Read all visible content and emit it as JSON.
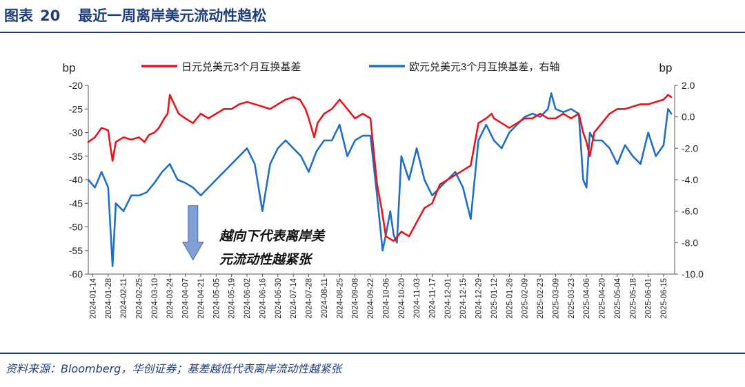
{
  "figure": {
    "label": "图表",
    "number": "20",
    "title": "最近一周离岸美元流动性趋松"
  },
  "source": "资料来源：Bloomberg，华创证券；基差越低代表离岸流动性越紧张",
  "colors": {
    "jpy_series": "#e8141c",
    "eur_series": "#1f6fc6",
    "header": "#1f3f7a",
    "annotation_arrow": "#7f9fd5"
  },
  "chart_data": {
    "type": "line",
    "y_left": {
      "unit": "bp",
      "min": -60,
      "max": -20,
      "ticks": [
        -20,
        -25,
        -30,
        -35,
        -40,
        -45,
        -50,
        -55,
        -60
      ]
    },
    "y_right": {
      "unit": "bp",
      "min": -10.0,
      "max": 2.0,
      "ticks": [
        "2.0",
        "0.0",
        "-2.0",
        "-4.0",
        "-6.0",
        "-8.0",
        "-10.0"
      ]
    },
    "x_range": [
      "2024-01-10",
      "2025-06-25"
    ],
    "x_tick_labels": [
      "2024-01-14",
      "2024-01-28",
      "2024-02-11",
      "2024-02-25",
      "2024-03-10",
      "2024-03-24",
      "2024-04-07",
      "2024-04-21",
      "2024-05-05",
      "2024-05-19",
      "2024-06-02",
      "2024-06-16",
      "2024-06-30",
      "2024-07-14",
      "2024-07-28",
      "2024-08-11",
      "2024-08-25",
      "2024-09-08",
      "2024-09-22",
      "2024-10-06",
      "2024-10-20",
      "2024-11-03",
      "2024-11-17",
      "2024-12-01",
      "2024-12-15",
      "2024-12-29",
      "2025-01-12",
      "2025-01-26",
      "2025-02-09",
      "2025-02-23",
      "2025-03-09",
      "2025-03-23",
      "2025-04-06",
      "2025-04-20",
      "2025-05-04",
      "2025-05-18",
      "2025-06-01",
      "2025-06-15"
    ],
    "grid": false,
    "legend_position": "top",
    "annotation": {
      "lines": [
        "越向下代表离岸美",
        "元流动性越紧张"
      ],
      "arrow": "down",
      "arrow_date": "2024-04-14",
      "arrow_from": -45.5,
      "arrow_to": -57
    },
    "series": [
      {
        "name": "日元兑美元3个月互换基差",
        "axis": "left",
        "points": [
          [
            "2024-01-10",
            -32
          ],
          [
            "2024-01-16",
            -31
          ],
          [
            "2024-01-22",
            -29
          ],
          [
            "2024-01-28",
            -29.5
          ],
          [
            "2024-01-30",
            -33
          ],
          [
            "2024-02-01",
            -36
          ],
          [
            "2024-02-04",
            -32
          ],
          [
            "2024-02-11",
            -31
          ],
          [
            "2024-02-18",
            -31.5
          ],
          [
            "2024-02-25",
            -31
          ],
          [
            "2024-03-01",
            -32
          ],
          [
            "2024-03-05",
            -30.5
          ],
          [
            "2024-03-10",
            -30
          ],
          [
            "2024-03-14",
            -29
          ],
          [
            "2024-03-19",
            -27
          ],
          [
            "2024-03-22",
            -26
          ],
          [
            "2024-03-24",
            -22
          ],
          [
            "2024-03-28",
            -24
          ],
          [
            "2024-04-01",
            -26
          ],
          [
            "2024-04-07",
            -27
          ],
          [
            "2024-04-14",
            -28
          ],
          [
            "2024-04-21",
            -26
          ],
          [
            "2024-04-28",
            -27
          ],
          [
            "2024-05-05",
            -26
          ],
          [
            "2024-05-12",
            -25
          ],
          [
            "2024-05-19",
            -25
          ],
          [
            "2024-05-26",
            -24
          ],
          [
            "2024-06-02",
            -23.5
          ],
          [
            "2024-06-09",
            -24
          ],
          [
            "2024-06-16",
            -24.5
          ],
          [
            "2024-06-23",
            -25
          ],
          [
            "2024-06-30",
            -24
          ],
          [
            "2024-07-07",
            -23
          ],
          [
            "2024-07-14",
            -22.5
          ],
          [
            "2024-07-20",
            -23
          ],
          [
            "2024-07-25",
            -25
          ],
          [
            "2024-07-28",
            -27
          ],
          [
            "2024-08-02",
            -31
          ],
          [
            "2024-08-05",
            -28
          ],
          [
            "2024-08-11",
            -26
          ],
          [
            "2024-08-18",
            -25
          ],
          [
            "2024-08-25",
            -23
          ],
          [
            "2024-09-01",
            -25
          ],
          [
            "2024-09-08",
            -27
          ],
          [
            "2024-09-15",
            -26
          ],
          [
            "2024-09-22",
            -27
          ],
          [
            "2024-09-28",
            -41
          ],
          [
            "2024-10-02",
            -46
          ],
          [
            "2024-10-06",
            -52
          ],
          [
            "2024-10-13",
            -53
          ],
          [
            "2024-10-20",
            -51
          ],
          [
            "2024-10-27",
            -52
          ],
          [
            "2024-11-03",
            -49
          ],
          [
            "2024-11-10",
            -46
          ],
          [
            "2024-11-17",
            -45
          ],
          [
            "2024-11-24",
            -41
          ],
          [
            "2024-12-01",
            -40
          ],
          [
            "2024-12-08",
            -39
          ],
          [
            "2024-12-15",
            -38
          ],
          [
            "2024-12-22",
            -37
          ],
          [
            "2024-12-29",
            -28
          ],
          [
            "2025-01-05",
            -27
          ],
          [
            "2025-01-10",
            -26
          ],
          [
            "2025-01-12",
            -27
          ],
          [
            "2025-01-19",
            -28
          ],
          [
            "2025-01-26",
            -29
          ],
          [
            "2025-02-02",
            -28
          ],
          [
            "2025-02-09",
            -27
          ],
          [
            "2025-02-16",
            -27
          ],
          [
            "2025-02-23",
            -26
          ],
          [
            "2025-03-02",
            -27
          ],
          [
            "2025-03-09",
            -27
          ],
          [
            "2025-03-16",
            -26
          ],
          [
            "2025-03-23",
            -27
          ],
          [
            "2025-03-30",
            -26
          ],
          [
            "2025-04-03",
            -30
          ],
          [
            "2025-04-06",
            -32
          ],
          [
            "2025-04-09",
            -35
          ],
          [
            "2025-04-13",
            -30
          ],
          [
            "2025-04-20",
            -28
          ],
          [
            "2025-04-27",
            -26
          ],
          [
            "2025-05-04",
            -25
          ],
          [
            "2025-05-11",
            -25
          ],
          [
            "2025-05-18",
            -24.5
          ],
          [
            "2025-05-25",
            -24
          ],
          [
            "2025-06-01",
            -24
          ],
          [
            "2025-06-08",
            -23.5
          ],
          [
            "2025-06-15",
            -23
          ],
          [
            "2025-06-19",
            -22
          ],
          [
            "2025-06-22",
            -22.5
          ]
        ]
      },
      {
        "name": "欧元兑美元3个月互换基差，右轴",
        "axis": "right",
        "points": [
          [
            "2024-01-10",
            -4
          ],
          [
            "2024-01-16",
            -4.5
          ],
          [
            "2024-01-22",
            -3.5
          ],
          [
            "2024-01-28",
            -4.5
          ],
          [
            "2024-02-01",
            -9.5
          ],
          [
            "2024-02-04",
            -5.5
          ],
          [
            "2024-02-11",
            -6
          ],
          [
            "2024-02-18",
            -5
          ],
          [
            "2024-02-25",
            -5
          ],
          [
            "2024-03-03",
            -4.8
          ],
          [
            "2024-03-10",
            -4.2
          ],
          [
            "2024-03-17",
            -3.5
          ],
          [
            "2024-03-24",
            -3
          ],
          [
            "2024-03-31",
            -4
          ],
          [
            "2024-04-07",
            -4.2
          ],
          [
            "2024-04-14",
            -4.5
          ],
          [
            "2024-04-21",
            -5
          ],
          [
            "2024-04-28",
            -4.5
          ],
          [
            "2024-05-05",
            -4
          ],
          [
            "2024-05-12",
            -3.5
          ],
          [
            "2024-05-19",
            -3
          ],
          [
            "2024-05-26",
            -2.5
          ],
          [
            "2024-06-02",
            -2
          ],
          [
            "2024-06-09",
            -3
          ],
          [
            "2024-06-16",
            -6
          ],
          [
            "2024-06-23",
            -3
          ],
          [
            "2024-06-30",
            -2
          ],
          [
            "2024-07-07",
            -1.5
          ],
          [
            "2024-07-14",
            -2
          ],
          [
            "2024-07-21",
            -2.5
          ],
          [
            "2024-07-28",
            -3.5
          ],
          [
            "2024-08-04",
            -2.2
          ],
          [
            "2024-08-11",
            -1.5
          ],
          [
            "2024-08-18",
            -1.5
          ],
          [
            "2024-08-25",
            -0.5
          ],
          [
            "2024-09-01",
            -2.5
          ],
          [
            "2024-09-08",
            -1.5
          ],
          [
            "2024-09-15",
            -1.2
          ],
          [
            "2024-09-22",
            -1.2
          ],
          [
            "2024-09-28",
            -5
          ],
          [
            "2024-10-03",
            -8.5
          ],
          [
            "2024-10-06",
            -7.5
          ],
          [
            "2024-10-10",
            -6
          ],
          [
            "2024-10-13",
            -7.5
          ],
          [
            "2024-10-16",
            -8
          ],
          [
            "2024-10-20",
            -2.5
          ],
          [
            "2024-10-27",
            -4
          ],
          [
            "2024-11-03",
            -2
          ],
          [
            "2024-11-10",
            -4
          ],
          [
            "2024-11-17",
            -5
          ],
          [
            "2024-11-24",
            -4.5
          ],
          [
            "2024-12-01",
            -4
          ],
          [
            "2024-12-08",
            -3.5
          ],
          [
            "2024-12-15",
            -4.5
          ],
          [
            "2024-12-22",
            -6.5
          ],
          [
            "2024-12-29",
            -1.5
          ],
          [
            "2025-01-05",
            -0.5
          ],
          [
            "2025-01-12",
            -1.5
          ],
          [
            "2025-01-19",
            -2
          ],
          [
            "2025-01-26",
            -1
          ],
          [
            "2025-02-02",
            -0.5
          ],
          [
            "2025-02-09",
            0
          ],
          [
            "2025-02-16",
            0.2
          ],
          [
            "2025-02-23",
            0
          ],
          [
            "2025-03-02",
            0.5
          ],
          [
            "2025-03-05",
            1.5
          ],
          [
            "2025-03-09",
            0.5
          ],
          [
            "2025-03-16",
            0.3
          ],
          [
            "2025-03-23",
            0.5
          ],
          [
            "2025-03-30",
            0.2
          ],
          [
            "2025-04-03",
            -4
          ],
          [
            "2025-04-06",
            -4.5
          ],
          [
            "2025-04-09",
            -1
          ],
          [
            "2025-04-13",
            -1.5
          ],
          [
            "2025-04-20",
            -1.5
          ],
          [
            "2025-04-27",
            -2
          ],
          [
            "2025-05-04",
            -3
          ],
          [
            "2025-05-11",
            -1.8
          ],
          [
            "2025-05-18",
            -2.5
          ],
          [
            "2025-05-25",
            -3
          ],
          [
            "2025-06-01",
            -1
          ],
          [
            "2025-06-08",
            -2.5
          ],
          [
            "2025-06-15",
            -1.8
          ],
          [
            "2025-06-19",
            0.5
          ],
          [
            "2025-06-22",
            0.2
          ]
        ]
      }
    ]
  }
}
